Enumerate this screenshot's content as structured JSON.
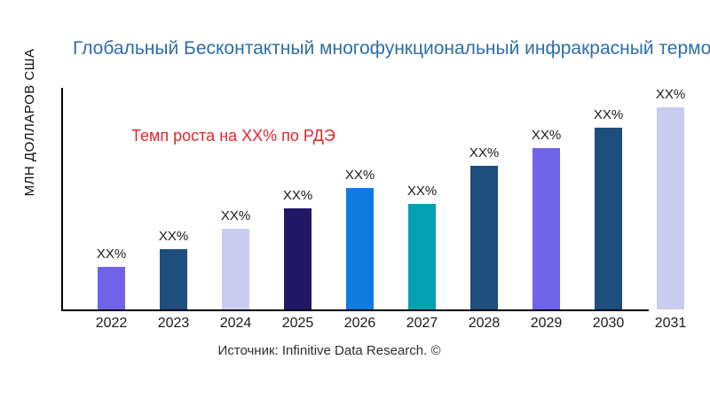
{
  "title": "Глобальный Бесконтактный многофункциональный инфракрасный термо",
  "y_axis_label": "МЛН ДОЛЛАРОВ США",
  "annotation": {
    "text": "Темп роста на XX% по РДЭ",
    "color": "#E32629"
  },
  "source_text": "Источник: Infinitive Data Research. ©",
  "colors": {
    "title_blue": "#2E6DA8",
    "annotation_red": "#E32629",
    "axis_black": "#000000",
    "label_text": "#1A1A1A"
  },
  "chart_data": {
    "type": "bar",
    "title": "Глобальный Бесконтактный многофункциональный инфракрасный термо",
    "ylabel": "МЛН ДОЛЛАРОВ США",
    "xlabel": "",
    "categories": [
      "2022",
      "2023",
      "2024",
      "2025",
      "2026",
      "2027",
      "2028",
      "2029",
      "2030",
      "2031"
    ],
    "values_relative": [
      21,
      30,
      40,
      50,
      60,
      52,
      71,
      80,
      90,
      100
    ],
    "bar_labels": [
      "XX%",
      "XX%",
      "XX%",
      "XX%",
      "XX%",
      "XX%",
      "XX%",
      "XX%",
      "XX%",
      "XX%"
    ],
    "bar_colors": [
      "#6F63E8",
      "#1E4E7E",
      "#CACCEF",
      "#211965",
      "#0F7AE0",
      "#069FB2",
      "#1E4E7E",
      "#6F63E8",
      "#1E4E7E",
      "#CACCEF"
    ],
    "ylim": [
      0,
      110
    ],
    "grid": false,
    "legend": false
  }
}
